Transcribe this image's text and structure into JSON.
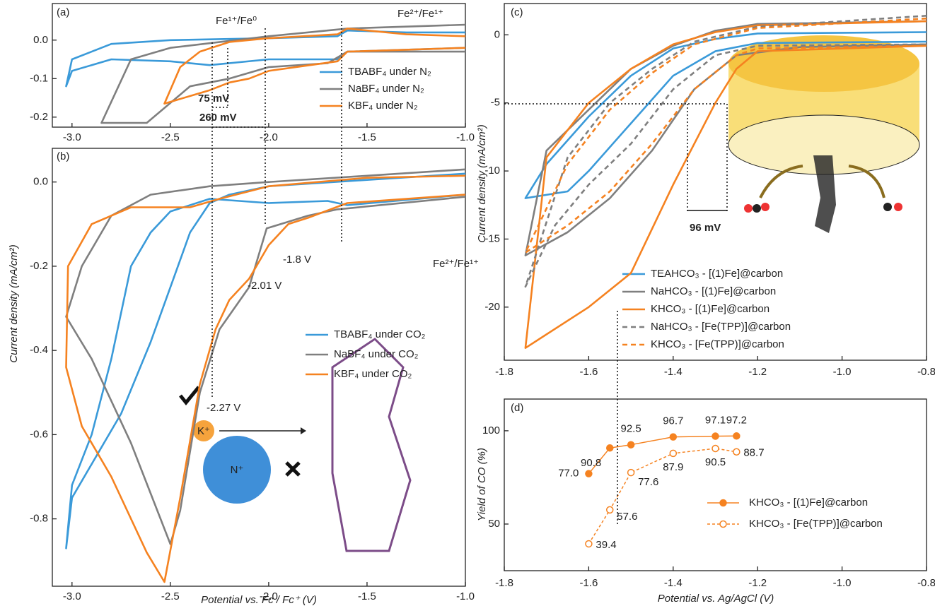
{
  "chart_data": [
    {
      "type": "line",
      "panel_label": "(a)",
      "xlim": [
        -3.1,
        -1.0
      ],
      "ylim": [
        -0.226,
        0.095
      ],
      "xticks": [
        {
          "value": -3,
          "label": "-3.0"
        },
        -2.5,
        {
          "value": -2,
          "label": "-2.0"
        },
        -1.5,
        {
          "value": -1,
          "label": "-1.0"
        }
      ],
      "yticks": [
        -0.2,
        -0.1,
        {
          "value": 0,
          "label": "0.0"
        }
      ],
      "annotations": [
        "Fe¹⁺/Fe⁰",
        "Fe²⁺/Fe¹⁺",
        "75 mV",
        "260 mV"
      ],
      "series": [
        {
          "name": "TBABF₄ under N₂",
          "color": "#3a9ad9",
          "x": [
            -1.0,
            -1.6,
            -1.65,
            -2.0,
            -2.3,
            -2.5,
            -2.8,
            -3.0,
            -3.03,
            -3.0,
            -2.8,
            -2.5,
            -2.0,
            -1.65,
            -1.6,
            -1.3,
            -1.0
          ],
          "values": [
            -0.02,
            -0.03,
            -0.05,
            -0.05,
            -0.065,
            -0.055,
            -0.05,
            -0.08,
            -0.12,
            -0.05,
            -0.01,
            0.0,
            0.005,
            0.01,
            0.025,
            0.02,
            0.02
          ]
        },
        {
          "name": "NaBF₄ under N₂",
          "color": "#7f7f7f",
          "x": [
            -1.0,
            -1.6,
            -1.7,
            -2.0,
            -2.2,
            -2.4,
            -2.62,
            -2.85,
            -2.7,
            -2.5,
            -2.0,
            -1.6,
            -1.0
          ],
          "values": [
            -0.03,
            -0.03,
            -0.06,
            -0.07,
            -0.1,
            -0.12,
            -0.215,
            -0.215,
            -0.05,
            -0.02,
            0.01,
            0.03,
            0.04
          ]
        },
        {
          "name": "KBF₄ under N₂",
          "color": "#f58220",
          "x": [
            -1.0,
            -1.6,
            -1.65,
            -2.0,
            -2.1,
            -2.2,
            -2.3,
            -2.53,
            -2.45,
            -2.35,
            -2.2,
            -2.0,
            -1.65,
            -1.6,
            -1.3,
            -1.0
          ],
          "values": [
            -0.02,
            -0.03,
            -0.055,
            -0.08,
            -0.1,
            -0.11,
            -0.13,
            -0.165,
            -0.07,
            -0.03,
            -0.005,
            0.005,
            0.015,
            0.03,
            0.015,
            0.01
          ]
        }
      ]
    },
    {
      "type": "line",
      "panel_label": "(b)",
      "x_label": "Potential vs. Fc / Fc⁺ (V)",
      "y_label": "Current density (mA/cm²)",
      "xlim": [
        -3.1,
        -1.0
      ],
      "ylim": [
        -0.96,
        0.08
      ],
      "xticks": [
        {
          "value": -3,
          "label": "-3.0"
        },
        -2.5,
        {
          "value": -2,
          "label": "-2.0"
        },
        -1.5,
        {
          "value": -1,
          "label": "-1.0"
        }
      ],
      "yticks": [
        -0.8,
        -0.6,
        -0.4,
        -0.2,
        {
          "value": 0,
          "label": "0.0"
        }
      ],
      "annotations": [
        "Fe²⁺/Fe¹⁺",
        "-2.01 V",
        "-1.8 V",
        "-2.27 V",
        "K⁺",
        "N⁺"
      ],
      "series": [
        {
          "name": "TBABF₄ under CO₂",
          "color": "#3a9ad9",
          "x": [
            -1.0,
            -1.5,
            -2.0,
            -2.2,
            -2.3,
            -2.4,
            -2.5,
            -2.6,
            -2.75,
            -2.9,
            -3.0,
            -3.03,
            -3.0,
            -2.9,
            -2.8,
            -2.7,
            -2.6,
            -2.5,
            -2.3,
            -2.0,
            -1.7,
            -1.6,
            -1.0
          ],
          "values": [
            0.02,
            0.005,
            -0.01,
            -0.03,
            -0.05,
            -0.12,
            -0.25,
            -0.38,
            -0.55,
            -0.67,
            -0.75,
            -0.87,
            -0.72,
            -0.6,
            -0.42,
            -0.2,
            -0.12,
            -0.07,
            -0.04,
            -0.05,
            -0.045,
            -0.055,
            -0.03
          ]
        },
        {
          "name": "NaBF₄ under CO₂",
          "color": "#7f7f7f",
          "x": [
            -1.0,
            -1.5,
            -2.0,
            -2.3,
            -2.6,
            -2.8,
            -2.95,
            -3.03,
            -2.9,
            -2.7,
            -2.55,
            -2.5,
            -2.45,
            -2.35,
            -2.25,
            -2.1,
            -2.01,
            -1.8,
            -1.65,
            -1.0
          ],
          "values": [
            0.03,
            0.015,
            0.0,
            -0.01,
            -0.03,
            -0.08,
            -0.2,
            -0.32,
            -0.42,
            -0.62,
            -0.8,
            -0.86,
            -0.78,
            -0.5,
            -0.35,
            -0.25,
            -0.11,
            -0.08,
            -0.065,
            -0.035
          ]
        },
        {
          "name": "KBF₄ under CO₂",
          "color": "#f58220",
          "x": [
            -1.0,
            -1.6,
            -1.8,
            -1.9,
            -2.0,
            -2.1,
            -2.2,
            -2.27,
            -2.35,
            -2.45,
            -2.53,
            -2.62,
            -2.8,
            -2.95,
            -3.03,
            -3.02,
            -2.9,
            -2.7,
            -2.4,
            -2.25,
            -2.0,
            -1.5,
            -1.0
          ],
          "values": [
            -0.03,
            -0.05,
            -0.085,
            -0.1,
            -0.15,
            -0.23,
            -0.28,
            -0.35,
            -0.48,
            -0.75,
            -0.95,
            -0.88,
            -0.7,
            -0.58,
            -0.44,
            -0.2,
            -0.1,
            -0.06,
            -0.06,
            -0.04,
            -0.01,
            0.01,
            0.015
          ]
        }
      ]
    },
    {
      "type": "line",
      "panel_label": "(c)",
      "y_label": "Current density (mA/cm²)",
      "xlim": [
        -1.8,
        -0.8
      ],
      "ylim": [
        -23.9,
        2.3
      ],
      "xticks": [
        -1.8,
        -1.6,
        -1.4,
        -1.2,
        {
          "value": -1,
          "label": "-1.0"
        },
        -0.8
      ],
      "yticks": [
        -20,
        -15,
        -10,
        -5,
        0
      ],
      "annotations": [
        "96 mV"
      ],
      "series": [
        {
          "name": "TEAHCO₃ - [(1)Fe]@carbon",
          "color": "#3a9ad9",
          "style": "solid",
          "x": [
            -0.8,
            -1.2,
            -1.3,
            -1.4,
            -1.5,
            -1.6,
            -1.7,
            -1.75,
            -1.65,
            -1.6,
            -1.5,
            -1.4,
            -1.3,
            -1.2,
            -0.8
          ],
          "values": [
            0.2,
            0.1,
            -0.3,
            -1,
            -3,
            -6,
            -9.5,
            -12,
            -11.5,
            -10,
            -6.5,
            -3,
            -1.2,
            -0.6,
            -0.5
          ]
        },
        {
          "name": "NaHCO₃ - [(1)Fe]@carbon",
          "color": "#7f7f7f",
          "style": "solid",
          "x": [
            -0.8,
            -1.2,
            -1.3,
            -1.4,
            -1.5,
            -1.6,
            -1.7,
            -1.75,
            -1.65,
            -1.55,
            -1.45,
            -1.35,
            -1.25,
            -1.1,
            -0.8
          ],
          "values": [
            1,
            0.8,
            0.3,
            -0.8,
            -2.5,
            -5.5,
            -8.5,
            -16.2,
            -14.5,
            -12,
            -8.5,
            -4,
            -1.5,
            -0.9,
            -0.7
          ]
        },
        {
          "name": "KHCO₃ - [(1)Fe]@carbon",
          "color": "#f58220",
          "style": "solid",
          "x": [
            -0.8,
            -1.2,
            -1.3,
            -1.4,
            -1.5,
            -1.6,
            -1.7,
            -1.75,
            -1.6,
            -1.5,
            -1.4,
            -1.3,
            -1.25,
            -1.2,
            -0.8
          ],
          "values": [
            1,
            0.7,
            0.2,
            -0.7,
            -2.5,
            -5,
            -9,
            -23,
            -20,
            -17.5,
            -11,
            -5,
            -2.5,
            -1.2,
            -0.8
          ]
        },
        {
          "name": "NaHCO₃ - [Fe(TPP)]@carbon",
          "color": "#7f7f7f",
          "style": "dashed",
          "x": [
            -0.8,
            -1.2,
            -1.35,
            -1.45,
            -1.55,
            -1.65,
            -1.75,
            -1.68,
            -1.6,
            -1.5,
            -1.4,
            -1.3,
            -1.2,
            -0.8
          ],
          "values": [
            1.4,
            0.6,
            -0.5,
            -2.5,
            -5,
            -9,
            -18.5,
            -14,
            -11,
            -8,
            -4,
            -1.5,
            -0.8,
            -0.7
          ]
        },
        {
          "name": "KHCO₃ - [Fe(TPP)]@carbon",
          "color": "#f58220",
          "style": "dashed",
          "x": [
            -0.8,
            -1.2,
            -1.35,
            -1.45,
            -1.55,
            -1.65,
            -1.75,
            -1.65,
            -1.55,
            -1.45,
            -1.35,
            -1.25,
            -1.2,
            -0.8
          ],
          "values": [
            1.2,
            0.5,
            -0.7,
            -2.8,
            -5.5,
            -9.5,
            -16,
            -14,
            -11.5,
            -8,
            -4,
            -1.5,
            -1,
            -0.8
          ]
        }
      ]
    },
    {
      "type": "line",
      "panel_label": "(d)",
      "x_label": "Potential vs. Ag/AgCl (V)",
      "y_label": "Yield of CO (%)",
      "xlim": [
        -1.8,
        -0.8
      ],
      "ylim": [
        25,
        117
      ],
      "xticks": [
        -1.8,
        -1.6,
        -1.4,
        -1.2,
        {
          "value": -1,
          "label": "-1.0"
        },
        -0.8
      ],
      "yticks": [
        50,
        100
      ],
      "series": [
        {
          "name": "KHCO₃ - [(1)Fe]@carbon",
          "color": "#f58220",
          "style": "solid",
          "marker": "filled",
          "x": [
            -1.6,
            -1.55,
            -1.5,
            -1.4,
            -1.3,
            -1.25
          ],
          "values": [
            77.0,
            90.8,
            92.5,
            96.7,
            97.1,
            97.2
          ],
          "value_labels": [
            "77.0",
            "90.8",
            "92.5",
            "96.7",
            "97.1",
            "97.2"
          ]
        },
        {
          "name": "KHCO₃ - [Fe(TPP)]@carbon",
          "color": "#f58220",
          "style": "dashed",
          "marker": "open",
          "x": [
            -1.6,
            -1.55,
            -1.5,
            -1.4,
            -1.3,
            -1.25
          ],
          "values": [
            39.4,
            57.6,
            77.6,
            87.9,
            90.5,
            88.7
          ],
          "value_labels": [
            "39.4",
            "57.6",
            "77.6",
            "87.9",
            "90.5",
            "88.7"
          ]
        }
      ]
    }
  ]
}
